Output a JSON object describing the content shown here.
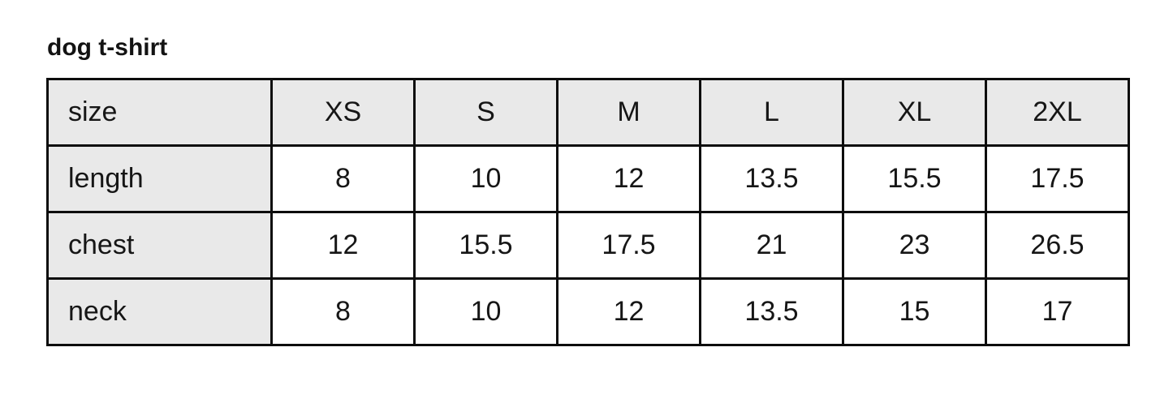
{
  "chart_data": {
    "type": "table",
    "title": "dog t-shirt",
    "columns": [
      "size",
      "XS",
      "S",
      "M",
      "L",
      "XL",
      "2XL"
    ],
    "rows": [
      {
        "label": "length",
        "values": [
          8,
          10,
          12,
          13.5,
          15.5,
          17.5
        ]
      },
      {
        "label": "chest",
        "values": [
          12,
          15.5,
          17.5,
          21,
          23,
          26.5
        ]
      },
      {
        "label": "neck",
        "values": [
          8,
          10,
          12,
          13.5,
          15,
          17
        ]
      }
    ],
    "layout_hints": {
      "header_row_shaded": true,
      "label_column_shaded": true
    }
  },
  "colors": {
    "header_bg": "#e9e9e9",
    "border": "#0d0d0d",
    "text": "#161616",
    "background": "#ffffff"
  }
}
